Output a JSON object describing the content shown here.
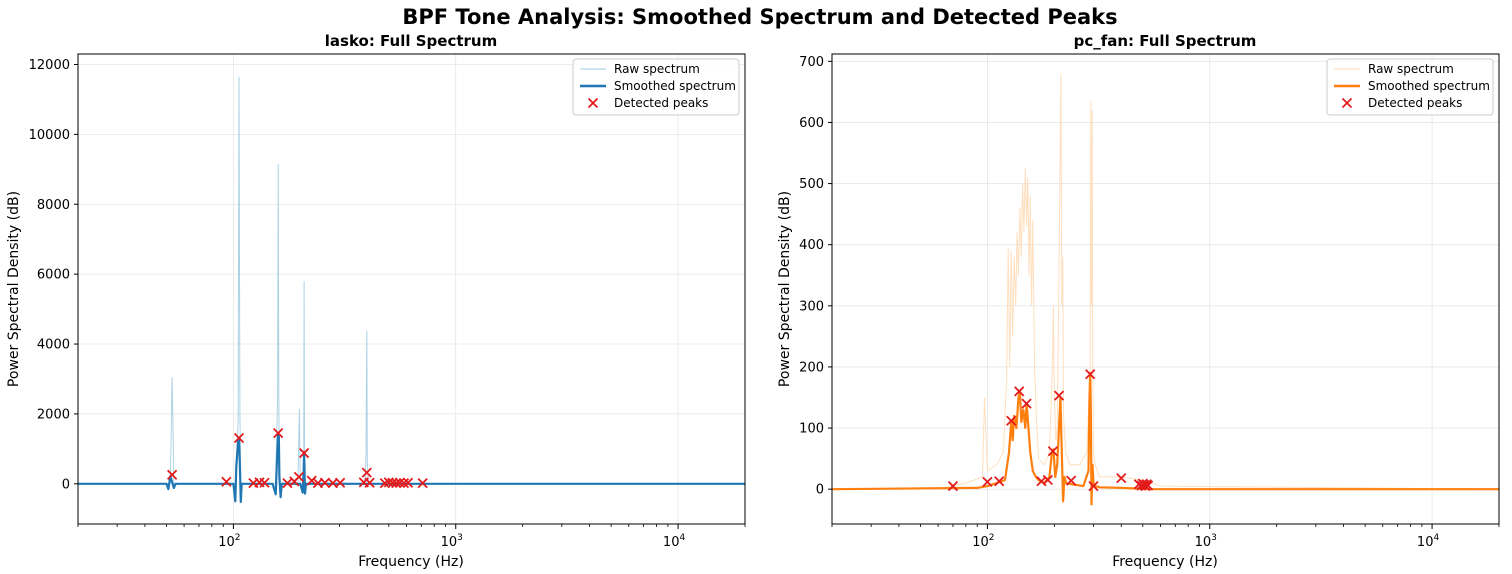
{
  "suptitle": "BPF Tone Analysis: Smoothed Spectrum and Detected Peaks",
  "chart_data": [
    {
      "type": "line",
      "title": "lasko: Full Spectrum",
      "xlabel": "Frequency (Hz)",
      "ylabel": "Power Spectral Density (dB)",
      "xscale": "log",
      "xlim": [
        20,
        20000
      ],
      "ylim": [
        -1150,
        12300
      ],
      "yticks": [
        0,
        2000,
        4000,
        6000,
        8000,
        10000,
        12000
      ],
      "xticks": [
        {
          "value": 100,
          "base": "10",
          "exp": "2"
        },
        {
          "value": 1000,
          "base": "10",
          "exp": "3"
        },
        {
          "value": 10000,
          "base": "10",
          "exp": "4"
        }
      ],
      "grid": true,
      "legend_position": "upper-right",
      "colors": {
        "raw": "#9ecae1",
        "smooth": "#1f77b4",
        "peaks": "#e31a1c"
      },
      "series": [
        {
          "name": "Raw spectrum",
          "x": [
            52,
            53,
            54,
            95,
            102,
            105,
            106,
            107,
            108,
            155,
            158,
            159,
            160,
            161,
            195,
            198,
            200,
            207,
            208,
            209,
            230,
            300,
            390,
            395,
            398,
            400,
            405,
            500,
            700
          ],
          "values": [
            0,
            3050,
            0,
            0,
            0,
            1800,
            11650,
            2000,
            0,
            0,
            2500,
            9150,
            2600,
            0,
            0,
            2150,
            0,
            0,
            5800,
            0,
            0,
            0,
            0,
            800,
            4380,
            600,
            0,
            0,
            0
          ]
        },
        {
          "name": "Smoothed spectrum",
          "x": [
            20,
            50,
            51,
            52,
            53,
            54,
            55,
            56,
            100,
            102,
            103,
            105,
            106,
            107,
            108,
            109,
            110,
            150,
            155,
            157,
            159,
            160,
            161,
            163,
            165,
            170,
            200,
            205,
            207,
            208,
            209,
            210,
            212,
            215,
            250,
            400,
            20000
          ],
          "values": [
            0,
            0,
            -150,
            220,
            50,
            -120,
            0,
            0,
            0,
            -500,
            500,
            1200,
            1300,
            500,
            -520,
            0,
            0,
            0,
            -300,
            700,
            1450,
            1400,
            200,
            -380,
            0,
            0,
            0,
            -250,
            400,
            900,
            300,
            -280,
            0,
            0,
            0,
            0,
            0
          ]
        },
        {
          "name": "Detected peaks",
          "x": [
            53,
            93,
            106,
            123,
            131,
            138,
            159,
            175,
            188,
            197,
            208,
            225,
            240,
            258,
            280,
            302,
            386,
            398,
            410,
            480,
            500,
            520,
            540,
            560,
            585,
            610,
            710
          ],
          "values": [
            260,
            60,
            1310,
            20,
            40,
            30,
            1450,
            20,
            70,
            200,
            880,
            90,
            20,
            30,
            20,
            30,
            40,
            320,
            30,
            20,
            40,
            30,
            20,
            30,
            20,
            30,
            20
          ]
        }
      ]
    },
    {
      "type": "line",
      "title": "pc_fan: Full Spectrum",
      "xlabel": "Frequency (Hz)",
      "ylabel": "Power Spectral Density (dB)",
      "xscale": "log",
      "xlim": [
        20,
        20000
      ],
      "ylim": [
        -57,
        712
      ],
      "yticks": [
        0,
        100,
        200,
        300,
        400,
        500,
        600,
        700
      ],
      "xticks": [
        {
          "value": 100,
          "base": "10",
          "exp": "2"
        },
        {
          "value": 1000,
          "base": "10",
          "exp": "3"
        },
        {
          "value": 10000,
          "base": "10",
          "exp": "4"
        }
      ],
      "grid": true,
      "legend_position": "upper-right",
      "colors": {
        "raw": "#ffd9b3",
        "smooth": "#ff7f0e",
        "peaks": "#e31a1c"
      },
      "series": [
        {
          "name": "Raw spectrum",
          "x": [
            60,
            80,
            95,
            97,
            100,
            110,
            118,
            122,
            124,
            126,
            128,
            130,
            132,
            134,
            136,
            138,
            140,
            142,
            144,
            146,
            148,
            150,
            152,
            154,
            156,
            158,
            160,
            163,
            166,
            170,
            180,
            190,
            196,
            198,
            200,
            203,
            206,
            210,
            214,
            216,
            218,
            220,
            225,
            235,
            260,
            280,
            290,
            292,
            294,
            296,
            298,
            300,
            305,
            320,
            400,
            500,
            600,
            20000
          ],
          "values": [
            0,
            10,
            20,
            150,
            30,
            40,
            60,
            180,
            395,
            200,
            390,
            250,
            380,
            300,
            420,
            350,
            460,
            380,
            500,
            420,
            525,
            430,
            510,
            350,
            480,
            300,
            440,
            200,
            120,
            50,
            40,
            60,
            200,
            300,
            150,
            80,
            100,
            360,
            680,
            300,
            380,
            120,
            60,
            40,
            40,
            60,
            200,
            636,
            300,
            620,
            200,
            60,
            40,
            20,
            20,
            15,
            5,
            0
          ]
        },
        {
          "name": "Smoothed spectrum",
          "x": [
            20,
            90,
            100,
            110,
            120,
            125,
            128,
            130,
            132,
            135,
            138,
            140,
            142,
            145,
            148,
            150,
            153,
            156,
            160,
            165,
            170,
            180,
            190,
            195,
            198,
            202,
            206,
            210,
            213,
            216,
            219,
            222,
            226,
            240,
            270,
            285,
            288,
            290,
            292,
            294,
            297,
            300,
            305,
            320,
            400,
            550,
            20000
          ],
          "values": [
            0,
            2,
            5,
            10,
            15,
            60,
            110,
            80,
            120,
            100,
            150,
            160,
            110,
            130,
            100,
            140,
            100,
            60,
            30,
            20,
            15,
            10,
            20,
            60,
            65,
            20,
            40,
            100,
            150,
            60,
            -20,
            20,
            10,
            8,
            5,
            30,
            150,
            190,
            120,
            -25,
            40,
            10,
            5,
            3,
            2,
            0,
            0
          ]
        },
        {
          "name": "Detected peaks",
          "x": [
            70,
            100,
            113,
            128,
            139,
            150,
            175,
            187,
            197,
            210,
            238,
            290,
            300,
            400,
            480,
            493,
            500,
            507,
            514,
            521,
            528
          ],
          "values": [
            5,
            12,
            13,
            112,
            160,
            140,
            13,
            15,
            62,
            153,
            14,
            188,
            5,
            18,
            8,
            6,
            9,
            7,
            5,
            8,
            6
          ]
        }
      ]
    }
  ]
}
